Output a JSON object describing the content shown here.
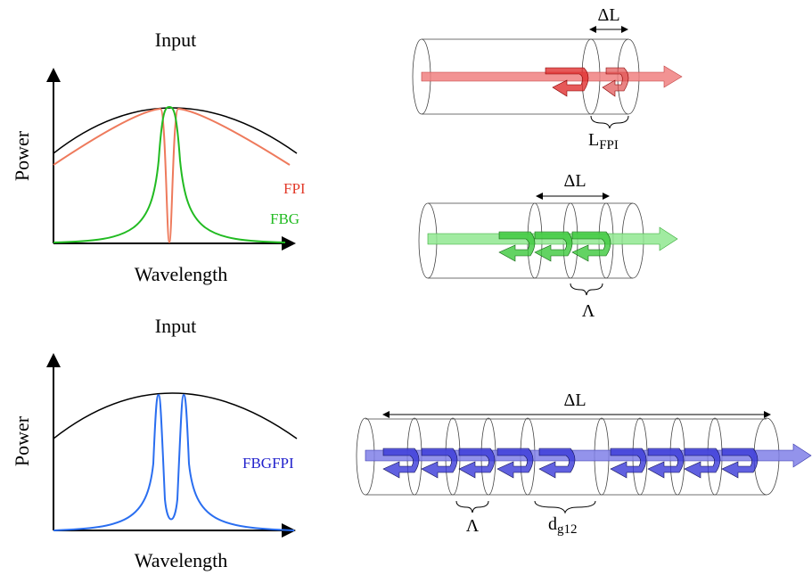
{
  "plots": [
    {
      "title": "Input",
      "y_label": "Power",
      "x_label": "Wavelength",
      "legend": [
        "FPI",
        "FBG"
      ]
    },
    {
      "title": "Input",
      "y_label": "Power",
      "x_label": "Wavelength",
      "legend": [
        "FBGFPI"
      ]
    }
  ],
  "fibers": [
    {
      "length_label": "ΔL",
      "period_label": {
        "main": "L",
        "sub": "FPI"
      }
    },
    {
      "length_label": "ΔL",
      "period_label": "Λ"
    },
    {
      "length_label": "ΔL",
      "period_label": "Λ",
      "gap_label": {
        "main": "d",
        "sub": "g12"
      }
    }
  ]
}
